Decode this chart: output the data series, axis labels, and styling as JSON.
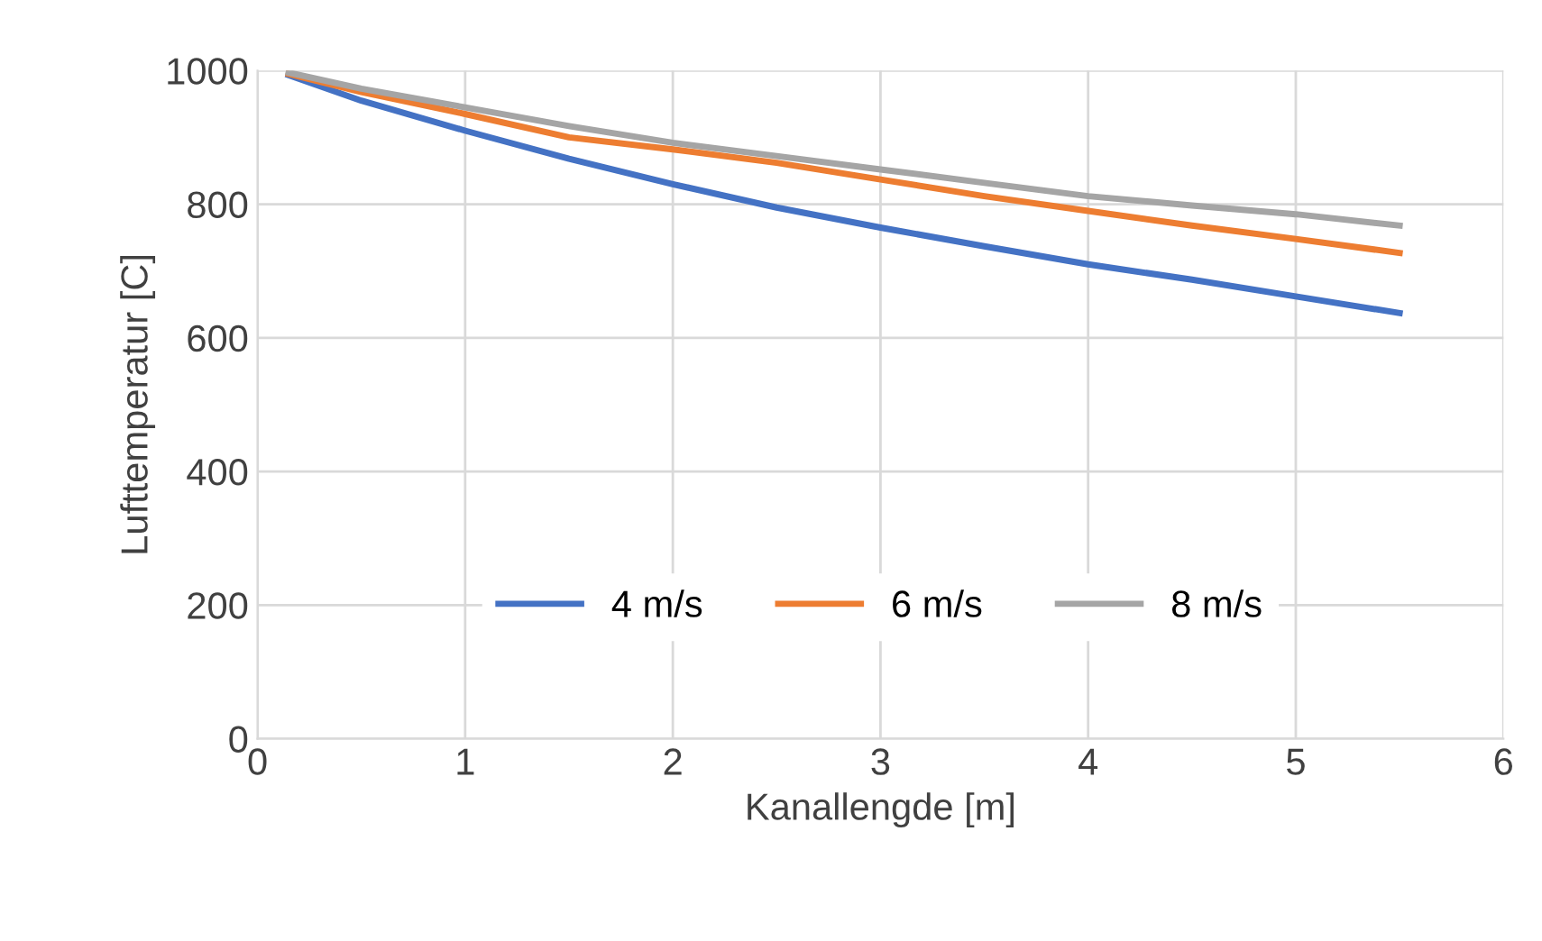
{
  "chart_data": {
    "type": "line",
    "xlabel": "Kanallengde [m]",
    "ylabel": "Lufttemperatur [C]",
    "xlim": [
      0,
      6
    ],
    "xticks": [
      0,
      1,
      2,
      3,
      4,
      5,
      6
    ],
    "ylim": [
      0,
      1000
    ],
    "yticks": [
      0,
      200,
      400,
      600,
      800,
      1000
    ],
    "grid": true,
    "legend": "bottom",
    "marker": "none",
    "line_style": "solid",
    "series": [
      {
        "name": "4 m/s",
        "color": "#4472c4",
        "x": [
          0.15,
          0.5,
          1,
          1.5,
          2,
          2.5,
          3,
          3.5,
          4,
          4.5,
          5,
          5.5
        ],
        "values": [
          993,
          955,
          910,
          868,
          830,
          795,
          765,
          737,
          710,
          687,
          662,
          637
        ]
      },
      {
        "name": "6 m/s",
        "color": "#ed7d31",
        "x": [
          0.15,
          0.5,
          1,
          1.5,
          2,
          2.5,
          3,
          3.5,
          4,
          4.5,
          5,
          5.5
        ],
        "values": [
          995,
          968,
          935,
          900,
          882,
          862,
          837,
          812,
          790,
          768,
          748,
          727
        ]
      },
      {
        "name": "8 m/s",
        "color": "#a5a5a5",
        "x": [
          0.15,
          0.5,
          1,
          1.5,
          2,
          2.5,
          3,
          3.5,
          4,
          4.5,
          5,
          5.5
        ],
        "values": [
          997,
          973,
          945,
          917,
          892,
          872,
          852,
          832,
          812,
          798,
          785,
          768
        ]
      }
    ]
  }
}
